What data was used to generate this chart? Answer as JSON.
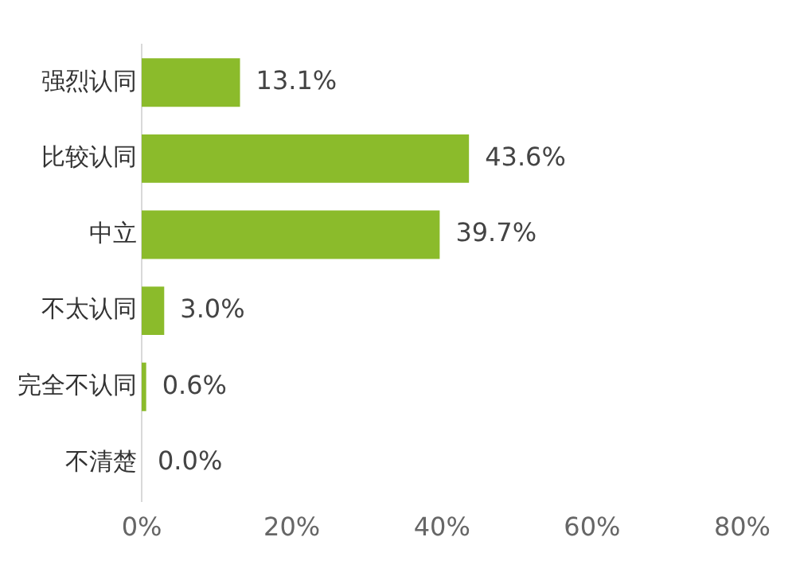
{
  "chart_data": {
    "type": "bar",
    "orientation": "horizontal",
    "categories": [
      "强烈认同",
      "比较认同",
      "中立",
      "不太认同",
      "完全不认同",
      "不清楚"
    ],
    "values": [
      13.1,
      43.6,
      39.7,
      3.0,
      0.6,
      0.0
    ],
    "color": "#8bbb2b",
    "xlim": [
      0,
      80
    ],
    "xticks": [
      {
        "value": 0,
        "label": "0%"
      },
      {
        "value": 20,
        "label": "20%"
      },
      {
        "value": 40,
        "label": "40%"
      },
      {
        "value": 60,
        "label": "60%"
      },
      {
        "value": 80,
        "label": "80%"
      }
    ],
    "data_labels": true,
    "value_labels": [
      "13.1%",
      "43.6%",
      "39.7%",
      "3.0%",
      "0.6%",
      "0.0%"
    ],
    "grid": false,
    "legend": false
  }
}
